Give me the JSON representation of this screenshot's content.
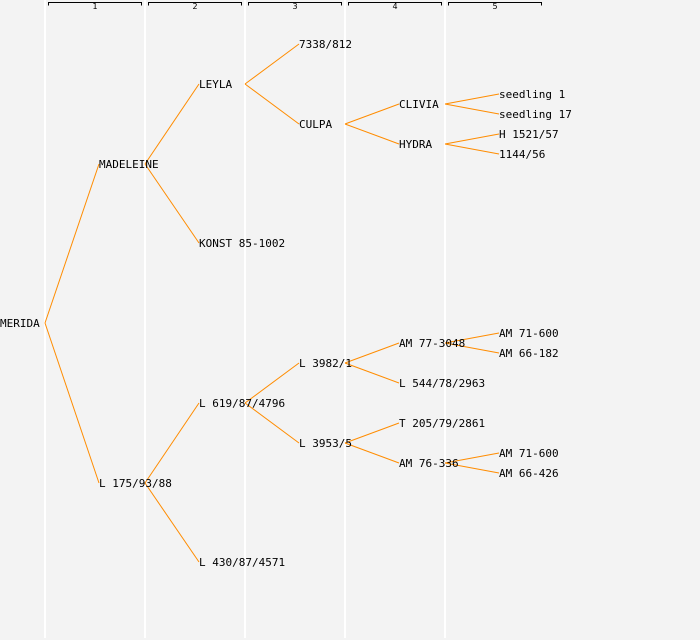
{
  "generations": [
    "1",
    "2",
    "3",
    "4",
    "5"
  ],
  "colors": {
    "background": "#f3f3f3",
    "line": "#ff8c00",
    "grid": "#ffffff",
    "text": "#000000"
  },
  "tree": {
    "name": "MERIDA",
    "children": [
      {
        "name": "MADELEINE",
        "children": [
          {
            "name": "LEYLA",
            "children": [
              {
                "name": "7338/812"
              },
              {
                "name": "CULPA",
                "children": [
                  {
                    "name": "CLIVIA",
                    "children": [
                      {
                        "name": "seedling 1"
                      },
                      {
                        "name": "seedling 17"
                      }
                    ]
                  },
                  {
                    "name": "HYDRA",
                    "children": [
                      {
                        "name": "H 1521/57"
                      },
                      {
                        "name": "1144/56"
                      }
                    ]
                  }
                ]
              }
            ]
          },
          {
            "name": "KONST 85-1002"
          }
        ]
      },
      {
        "name": "L 175/93/88",
        "children": [
          {
            "name": "L 619/87/4796",
            "children": [
              {
                "name": "L 3982/1",
                "children": [
                  {
                    "name": "AM 77-3048",
                    "children": [
                      {
                        "name": "AM 71-600"
                      },
                      {
                        "name": "AM 66-182"
                      }
                    ]
                  },
                  {
                    "name": "L 544/78/2963"
                  }
                ]
              },
              {
                "name": "L 3953/5",
                "children": [
                  {
                    "name": "T 205/79/2861"
                  },
                  {
                    "name": "AM 76-336",
                    "children": [
                      {
                        "name": "AM 71-600"
                      },
                      {
                        "name": "AM 66-426"
                      }
                    ]
                  }
                ]
              }
            ]
          },
          {
            "name": "L 430/87/4571"
          }
        ]
      }
    ]
  }
}
